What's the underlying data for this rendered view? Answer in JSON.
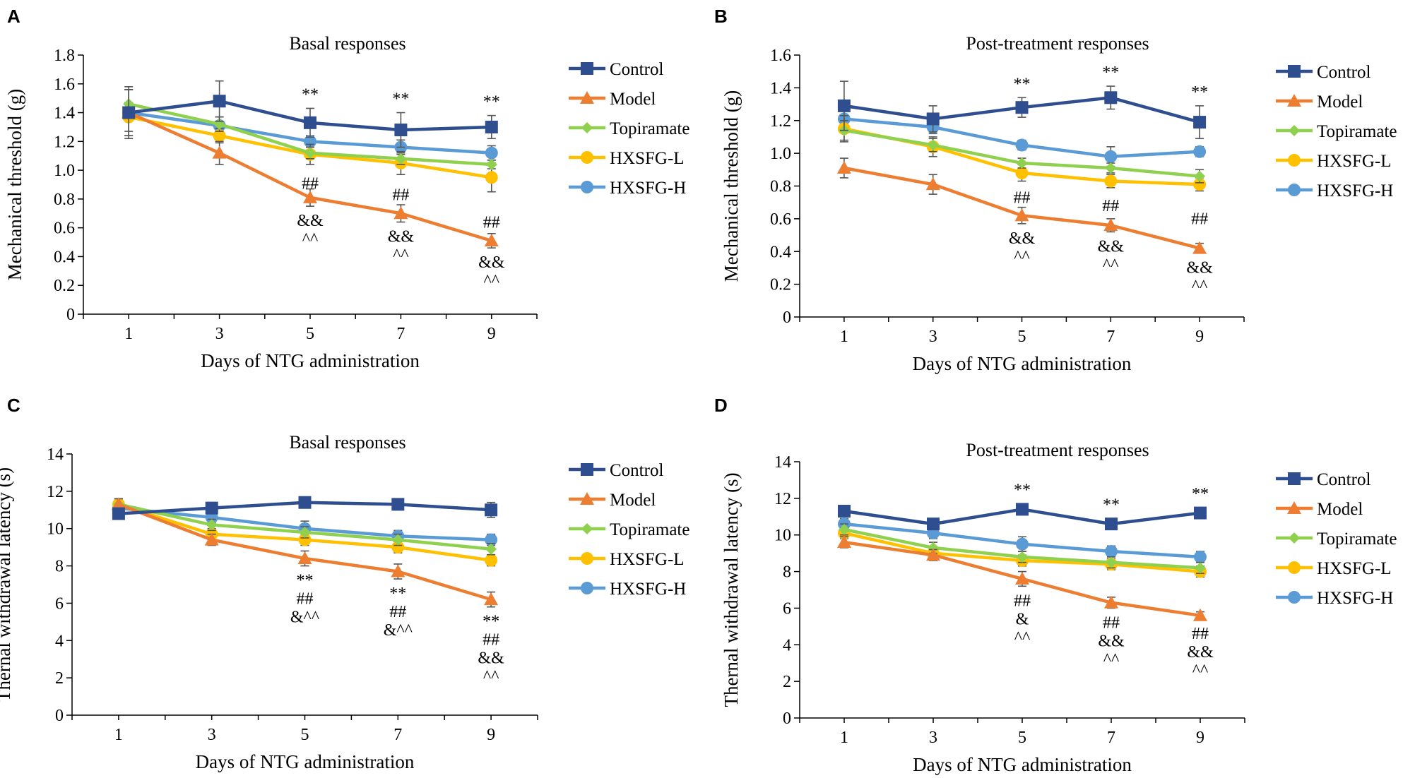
{
  "colors": {
    "Control": "#2e4e8f",
    "Model": "#ed7d31",
    "Topiramate": "#8fd14f",
    "HXSFG-L": "#ffc000",
    "HXSFG-H": "#5b9bd5"
  },
  "chart_data": [
    {
      "panel": "A",
      "type": "line",
      "title": "Basal responses",
      "xlabel": "Days of NTG administration",
      "ylabel": "Mechanical threshold (g)",
      "x": [
        1,
        3,
        5,
        7,
        9
      ],
      "xticks": [
        "1",
        "3",
        "5",
        "7",
        "9"
      ],
      "ylim": [
        0,
        1.8
      ],
      "yticks": [
        "0",
        "0.2",
        "0.4",
        "0.6",
        "0.8",
        "1.0",
        "1.2",
        "1.4",
        "1.6",
        "1.8"
      ],
      "legend": "right",
      "series": [
        {
          "name": "Control",
          "marker": "square",
          "values": [
            1.4,
            1.48,
            1.33,
            1.28,
            1.3
          ],
          "errors": [
            0.18,
            0.14,
            0.1,
            0.12,
            0.08
          ]
        },
        {
          "name": "Model",
          "marker": "triangle",
          "values": [
            1.4,
            1.12,
            0.81,
            0.7,
            0.51
          ],
          "errors": [
            0.16,
            0.08,
            0.06,
            0.06,
            0.05
          ]
        },
        {
          "name": "Topiramate",
          "marker": "diamond",
          "values": [
            1.46,
            1.32,
            1.12,
            1.08,
            1.04
          ],
          "errors": [
            0.1,
            0.05,
            0.04,
            0.04,
            0.03
          ]
        },
        {
          "name": "HXSFG-L",
          "marker": "circle",
          "values": [
            1.37,
            1.24,
            1.11,
            1.05,
            0.95
          ],
          "errors": [
            0.1,
            0.05,
            0.07,
            0.08,
            0.1
          ]
        },
        {
          "name": "HXSFG-H",
          "marker": "circle",
          "values": [
            1.4,
            1.31,
            1.2,
            1.16,
            1.12
          ],
          "errors": [
            0.16,
            0.06,
            0.04,
            0.05,
            0.05
          ]
        }
      ],
      "annotations": [
        {
          "x": 5,
          "lines": [
            "**"
          ],
          "pos": "above",
          "anchor": 1.33,
          "err": 0.1
        },
        {
          "x": 7,
          "lines": [
            "**"
          ],
          "pos": "above",
          "anchor": 1.28,
          "err": 0.12
        },
        {
          "x": 9,
          "lines": [
            "**"
          ],
          "pos": "above",
          "anchor": 1.3,
          "err": 0.08
        },
        {
          "x": 5,
          "lines": [
            "##"
          ],
          "pos": "between",
          "anchor": 0.92
        },
        {
          "x": 7,
          "lines": [
            "##"
          ],
          "pos": "between",
          "anchor": 0.84
        },
        {
          "x": 9,
          "lines": [
            "##"
          ],
          "pos": "between",
          "anchor": 0.65
        },
        {
          "x": 5,
          "lines": [
            "&&",
            "^^"
          ],
          "pos": "below",
          "anchor": 0.81,
          "err": 0.06
        },
        {
          "x": 7,
          "lines": [
            "&&",
            "^^"
          ],
          "pos": "below",
          "anchor": 0.7,
          "err": 0.06
        },
        {
          "x": 9,
          "lines": [
            "&&",
            "^^"
          ],
          "pos": "below",
          "anchor": 0.51,
          "err": 0.05
        }
      ]
    },
    {
      "panel": "B",
      "type": "line",
      "title": "Post-treatment responses",
      "xlabel": "Days of NTG administration",
      "ylabel": "Mechanical threshold (g)",
      "x": [
        1,
        3,
        5,
        7,
        9
      ],
      "xticks": [
        "1",
        "3",
        "5",
        "7",
        "9"
      ],
      "ylim": [
        0,
        1.6
      ],
      "yticks": [
        "0",
        "0.2",
        "0.4",
        "0.6",
        "0.8",
        "1.0",
        "1.2",
        "1.4",
        "1.6"
      ],
      "legend": "right",
      "series": [
        {
          "name": "Control",
          "marker": "square",
          "values": [
            1.29,
            1.21,
            1.28,
            1.34,
            1.19
          ],
          "errors": [
            0.15,
            0.08,
            0.06,
            0.07,
            0.1
          ]
        },
        {
          "name": "Model",
          "marker": "triangle",
          "values": [
            0.91,
            0.81,
            0.62,
            0.56,
            0.42
          ],
          "errors": [
            0.06,
            0.06,
            0.05,
            0.04,
            0.03
          ]
        },
        {
          "name": "Topiramate",
          "marker": "diamond",
          "values": [
            1.14,
            1.05,
            0.94,
            0.91,
            0.86
          ],
          "errors": [
            0.06,
            0.04,
            0.03,
            0.03,
            0.04
          ]
        },
        {
          "name": "HXSFG-L",
          "marker": "circle",
          "values": [
            1.15,
            1.04,
            0.88,
            0.83,
            0.81
          ],
          "errors": [
            0.08,
            0.06,
            0.05,
            0.04,
            0.04
          ]
        },
        {
          "name": "HXSFG-H",
          "marker": "circle",
          "values": [
            1.21,
            1.16,
            1.05,
            0.98,
            1.01
          ],
          "errors": [
            0.05,
            0.04,
            0.03,
            0.06,
            0.03
          ]
        }
      ],
      "annotations": [
        {
          "x": 5,
          "lines": [
            "**"
          ],
          "pos": "above",
          "anchor": 1.28,
          "err": 0.06
        },
        {
          "x": 7,
          "lines": [
            "**"
          ],
          "pos": "above",
          "anchor": 1.34,
          "err": 0.07
        },
        {
          "x": 9,
          "lines": [
            "**"
          ],
          "pos": "above",
          "anchor": 1.19,
          "err": 0.1
        },
        {
          "x": 5,
          "lines": [
            "##"
          ],
          "pos": "between",
          "anchor": 0.74
        },
        {
          "x": 7,
          "lines": [
            "##"
          ],
          "pos": "between",
          "anchor": 0.69
        },
        {
          "x": 9,
          "lines": [
            "##"
          ],
          "pos": "between",
          "anchor": 0.61
        },
        {
          "x": 5,
          "lines": [
            "&&",
            "^^"
          ],
          "pos": "below",
          "anchor": 0.62,
          "err": 0.05
        },
        {
          "x": 7,
          "lines": [
            "&&",
            "^^"
          ],
          "pos": "below",
          "anchor": 0.56,
          "err": 0.04
        },
        {
          "x": 9,
          "lines": [
            "&&",
            "^^"
          ],
          "pos": "below",
          "anchor": 0.42,
          "err": 0.03
        }
      ]
    },
    {
      "panel": "C",
      "type": "line",
      "title": "Basal responses",
      "xlabel": "Days of NTG administration",
      "ylabel": "Thernal withdrawal latency (s)",
      "x": [
        1,
        3,
        5,
        7,
        9
      ],
      "xticks": [
        "1",
        "3",
        "5",
        "7",
        "9"
      ],
      "ylim": [
        0,
        14
      ],
      "yticks": [
        "0",
        "2",
        "4",
        "6",
        "8",
        "10",
        "12",
        "14"
      ],
      "legend": "right",
      "series": [
        {
          "name": "Control",
          "marker": "square",
          "values": [
            10.8,
            11.1,
            11.4,
            11.3,
            11.0
          ],
          "errors": [
            0.3,
            0.3,
            0.3,
            0.3,
            0.4
          ]
        },
        {
          "name": "Model",
          "marker": "triangle",
          "values": [
            11.3,
            9.4,
            8.4,
            7.7,
            6.2
          ],
          "errors": [
            0.3,
            0.3,
            0.4,
            0.4,
            0.4
          ]
        },
        {
          "name": "Topiramate",
          "marker": "diamond",
          "values": [
            11.3,
            10.2,
            9.8,
            9.4,
            8.9
          ],
          "errors": [
            0.3,
            0.3,
            0.3,
            0.3,
            0.3
          ]
        },
        {
          "name": "HXSFG-L",
          "marker": "circle",
          "values": [
            11.3,
            9.7,
            9.4,
            9.0,
            8.3
          ],
          "errors": [
            0.3,
            0.3,
            0.3,
            0.3,
            0.3
          ]
        },
        {
          "name": "HXSFG-H",
          "marker": "circle",
          "values": [
            11.1,
            10.6,
            10.0,
            9.6,
            9.4
          ],
          "errors": [
            0.3,
            0.3,
            0.4,
            0.3,
            0.3
          ]
        }
      ],
      "annotations": [
        {
          "x": 5,
          "lines": [
            "**",
            "##",
            "&^^"
          ],
          "pos": "below",
          "anchor": 8.4,
          "err": 0.4
        },
        {
          "x": 7,
          "lines": [
            "**",
            "##",
            "&^^"
          ],
          "pos": "below",
          "anchor": 7.7,
          "err": 0.4
        },
        {
          "x": 9,
          "lines": [
            "**",
            "##",
            "&&",
            "^^"
          ],
          "pos": "below",
          "anchor": 6.2,
          "err": 0.4
        }
      ]
    },
    {
      "panel": "D",
      "type": "line",
      "title": "Post-treatment responses",
      "xlabel": "Days of NTG administration",
      "ylabel": "Thernal withdrawal latency (s)",
      "x": [
        1,
        3,
        5,
        7,
        9
      ],
      "xticks": [
        "1",
        "3",
        "5",
        "7",
        "9"
      ],
      "ylim": [
        0,
        14
      ],
      "yticks": [
        "0",
        "2",
        "4",
        "6",
        "8",
        "10",
        "12",
        "14"
      ],
      "legend": "right",
      "series": [
        {
          "name": "Control",
          "marker": "square",
          "values": [
            11.3,
            10.6,
            11.4,
            10.6,
            11.2
          ],
          "errors": [
            0.3,
            0.3,
            0.3,
            0.3,
            0.3
          ]
        },
        {
          "name": "Model",
          "marker": "triangle",
          "values": [
            9.6,
            8.9,
            7.6,
            6.3,
            5.6
          ],
          "errors": [
            0.3,
            0.3,
            0.4,
            0.3,
            0.2
          ]
        },
        {
          "name": "Topiramate",
          "marker": "diamond",
          "values": [
            10.3,
            9.3,
            8.8,
            8.5,
            8.2
          ],
          "errors": [
            0.3,
            0.3,
            0.3,
            0.3,
            0.3
          ]
        },
        {
          "name": "HXSFG-L",
          "marker": "circle",
          "values": [
            10.1,
            9.0,
            8.6,
            8.4,
            8.0
          ],
          "errors": [
            0.3,
            0.3,
            0.3,
            0.3,
            0.3
          ]
        },
        {
          "name": "HXSFG-H",
          "marker": "circle",
          "values": [
            10.6,
            10.1,
            9.5,
            9.1,
            8.8
          ],
          "errors": [
            0.3,
            0.3,
            0.4,
            0.3,
            0.3
          ]
        }
      ],
      "annotations": [
        {
          "x": 5,
          "lines": [
            "**"
          ],
          "pos": "above",
          "anchor": 11.4,
          "err": 0.3
        },
        {
          "x": 7,
          "lines": [
            "**"
          ],
          "pos": "above",
          "anchor": 10.6,
          "err": 0.3
        },
        {
          "x": 9,
          "lines": [
            "**"
          ],
          "pos": "above",
          "anchor": 11.2,
          "err": 0.3
        },
        {
          "x": 5,
          "lines": [
            "##",
            "&",
            "^^"
          ],
          "pos": "below",
          "anchor": 7.6,
          "err": 0.4
        },
        {
          "x": 7,
          "lines": [
            "##",
            "&&",
            "^^"
          ],
          "pos": "below",
          "anchor": 6.3,
          "err": 0.3
        },
        {
          "x": 9,
          "lines": [
            "##",
            "&&",
            "^^"
          ],
          "pos": "below",
          "anchor": 5.6,
          "err": 0.2
        }
      ]
    }
  ]
}
